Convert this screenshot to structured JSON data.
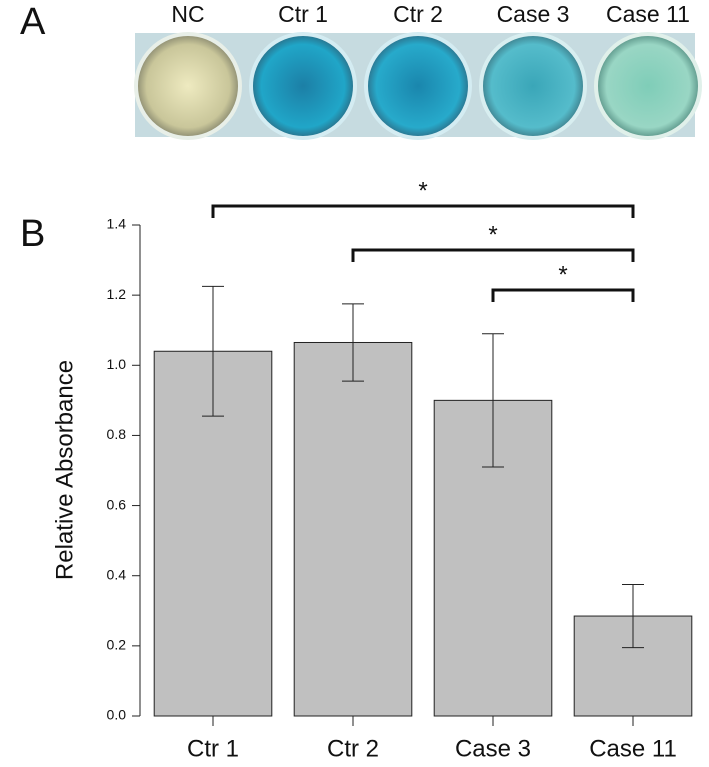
{
  "panel_a": {
    "label": "A",
    "wells": [
      "NC",
      "Ctr 1",
      "Ctr 2",
      "Case 3",
      "Case 11"
    ]
  },
  "chart_data": {
    "type": "bar",
    "panel_label": "B",
    "y_label": "Relative Absorbance",
    "categories": [
      "Ctr 1",
      "Ctr 2",
      "Case 3",
      "Case 11"
    ],
    "values": [
      1.04,
      1.065,
      0.9,
      0.285
    ],
    "errors": [
      0.185,
      0.11,
      0.19,
      0.09
    ],
    "color": "#c0c0c0",
    "ylim": [
      0,
      1.4
    ],
    "yticks": [
      {
        "value": 0,
        "label": "0.0"
      },
      0.2,
      0.4,
      0.6,
      0.8,
      {
        "value": 1,
        "label": "1.0"
      },
      1.2,
      1.4
    ],
    "annotations": [
      {
        "text": "*",
        "between": [
          "Ctr 1",
          "Case 11"
        ]
      },
      {
        "text": "*",
        "between": [
          "Ctr 2",
          "Case 11"
        ]
      },
      {
        "text": "*",
        "between": [
          "Case 3",
          "Case 11"
        ]
      }
    ]
  }
}
